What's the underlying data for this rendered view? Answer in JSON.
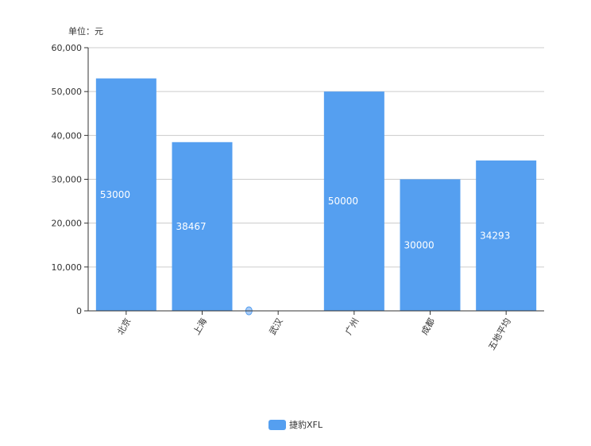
{
  "chart_data": {
    "type": "bar",
    "unit_label": "单位：元",
    "categories": [
      "北京",
      "上海",
      "武汉",
      "广州",
      "成都",
      "五地平均"
    ],
    "series": [
      {
        "name": "捷豹XFL",
        "values": [
          53000,
          38467,
          0,
          50000,
          30000,
          34293
        ],
        "data_labels": [
          "53000",
          "38467",
          "",
          "50000",
          "30000",
          "34293"
        ]
      }
    ],
    "ylim": [
      0,
      60000
    ],
    "yticks": [
      0,
      10000,
      20000,
      30000,
      40000,
      50000,
      60000
    ],
    "ytick_labels": [
      "0",
      "10,000",
      "20,000",
      "30,000",
      "40,000",
      "50,000",
      "60,000"
    ],
    "grid": true,
    "legend_position": "bottom-center",
    "colors": {
      "bar": "#559ff0",
      "grid": "#cccccc",
      "axis": "#333333",
      "text": "#333333",
      "bar_label": "#ffffff"
    }
  }
}
